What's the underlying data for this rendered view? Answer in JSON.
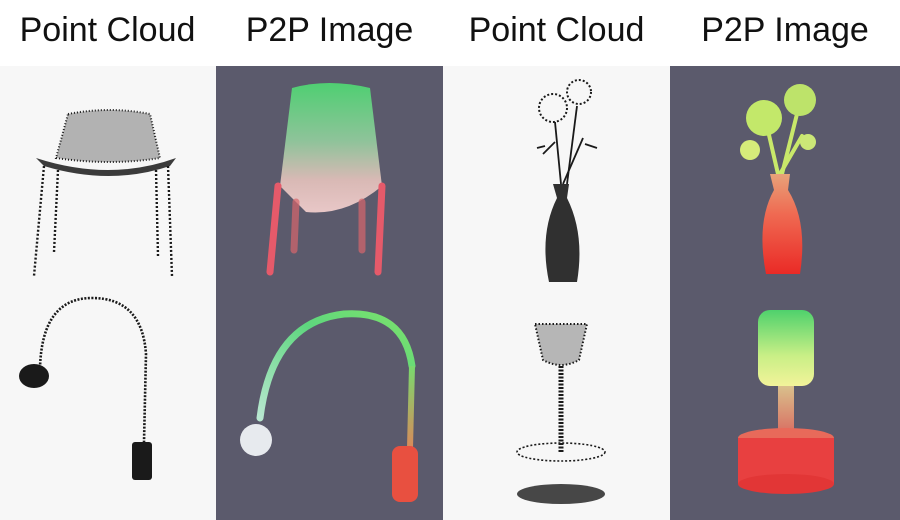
{
  "figure": {
    "column_headers": [
      "Point Cloud",
      "P2P Image",
      "Point Cloud",
      "P2P Image"
    ],
    "colors": {
      "point_cloud_bg": "#f7f7f7",
      "p2p_bg": "#5b5a6c",
      "points": "#1a1a1a"
    },
    "rows": [
      {
        "left_object": "chair",
        "right_object": "vase-with-flowers"
      },
      {
        "left_object": "arc-floor-lamp",
        "right_object": "table-lamp"
      }
    ]
  }
}
